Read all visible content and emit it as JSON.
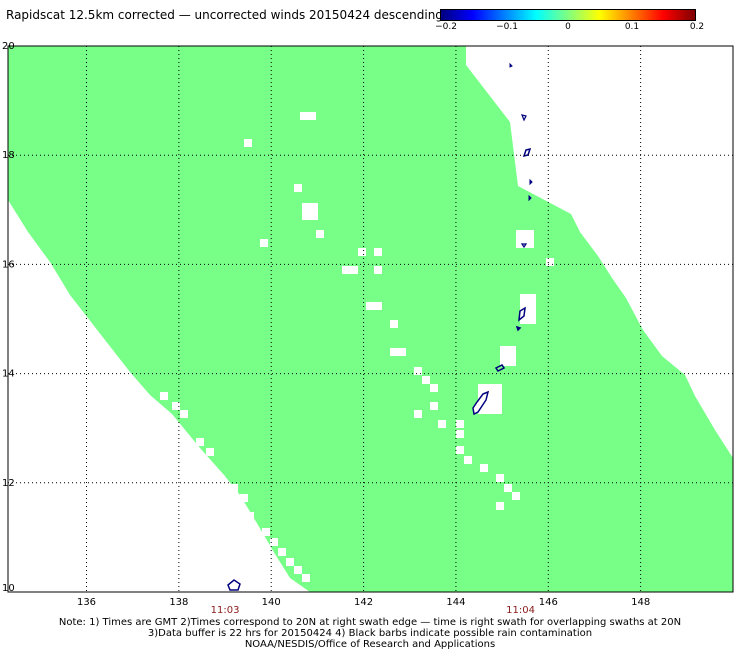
{
  "title": "Rapidscat 12.5km corrected — uncorrected winds 20150424 descending",
  "colorbar": {
    "ticks": [
      "−0.2",
      "−0.1",
      "0",
      "0.1",
      "0.2"
    ],
    "colors": [
      "#00007f",
      "#0000ff",
      "#0080ff",
      "#00ffff",
      "#80ff80",
      "#ffff00",
      "#ff8000",
      "#ff0000",
      "#7f0000"
    ]
  },
  "map": {
    "lon_range": [
      134.3,
      150.0
    ],
    "lat_range": [
      10,
      20
    ],
    "lon_ticks": [
      "136",
      "138",
      "140",
      "142",
      "144",
      "146",
      "148"
    ],
    "lat_ticks": [
      "10",
      "12",
      "14",
      "16",
      "18",
      "20"
    ],
    "time_labels": [
      {
        "lon": 139,
        "text": "11:03"
      },
      {
        "lon": 145.4,
        "text": "11:04"
      }
    ],
    "swath_color": "#77ff88",
    "grid": true
  },
  "notes": [
    "Note: 1) Times are GMT 2)Times correspond to 20N at right swath edge — time is right swath for overlapping swaths at 20N",
    "3)Data buffer is 22 hrs for 20150424 4) Black barbs indicate possible rain contamination",
    "NOAA/NESDIS/Office of Research and Applications"
  ]
}
